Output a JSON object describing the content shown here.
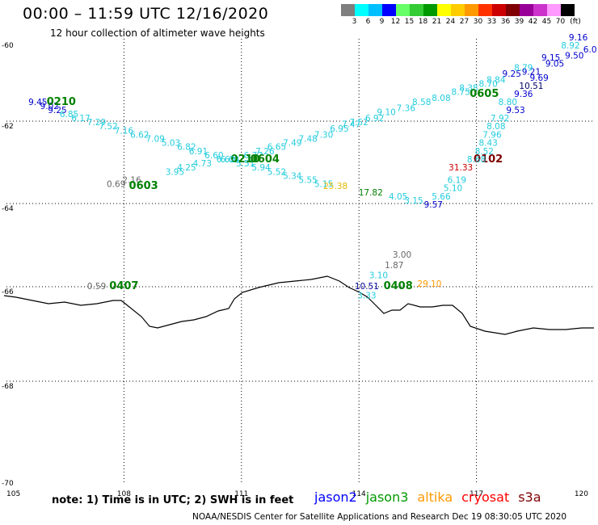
{
  "header": {
    "title": "00:00 – 11:59 UTC 12/16/2020",
    "subtitle": "12 hour collection of altimeter wave heights"
  },
  "colorbar": {
    "colors": [
      "#7f7f7f",
      "#00ffff",
      "#00bfff",
      "#0000ff",
      "#66ff66",
      "#33cc33",
      "#009900",
      "#ffff00",
      "#ffcc00",
      "#ff9900",
      "#ff3300",
      "#cc0000",
      "#800000",
      "#990099",
      "#cc33cc",
      "#ff99ff",
      "#000000"
    ],
    "labels": [
      "3",
      "6",
      "9",
      "12",
      "15",
      "18",
      "21",
      "24",
      "27",
      "30",
      "33",
      "36",
      "39",
      "42",
      "45",
      "70"
    ],
    "unit": "(ft)"
  },
  "axes": {
    "lon_labels": [
      "105",
      "108",
      "111",
      "114",
      "117",
      "120"
    ],
    "lat_labels": [
      "-60",
      "-62",
      "-64",
      "-66",
      "-68",
      "-70"
    ]
  },
  "measurements": [
    {
      "v": "9.45",
      "c": "#0000cc",
      "lon": 105.8,
      "lat": -61.6
    },
    {
      "v": "9.02",
      "c": "#0000cc",
      "lon": 106.1,
      "lat": -61.7
    },
    {
      "v": "9.25",
      "c": "#0000cc",
      "lon": 106.3,
      "lat": -61.8
    },
    {
      "v": "0210",
      "c": "#008000",
      "lon": 106.4,
      "lat": -61.6,
      "big": true
    },
    {
      "v": "6.85",
      "c": "#22ccdd",
      "lon": 106.6,
      "lat": -61.9
    },
    {
      "v": "6.17",
      "c": "#22ccdd",
      "lon": 106.9,
      "lat": -62.0
    },
    {
      "v": "7.29",
      "c": "#22ccdd",
      "lon": 107.3,
      "lat": -62.1
    },
    {
      "v": "7.52",
      "c": "#22ccdd",
      "lon": 107.6,
      "lat": -62.2
    },
    {
      "v": "7.16",
      "c": "#22ccdd",
      "lon": 108.0,
      "lat": -62.3
    },
    {
      "v": "6.62",
      "c": "#22ccdd",
      "lon": 108.4,
      "lat": -62.4
    },
    {
      "v": "7.09",
      "c": "#22ccdd",
      "lon": 108.8,
      "lat": -62.5
    },
    {
      "v": "5.03",
      "c": "#22ccdd",
      "lon": 109.2,
      "lat": -62.6
    },
    {
      "v": "6.82",
      "c": "#22ccdd",
      "lon": 109.6,
      "lat": -62.7
    },
    {
      "v": "6.91",
      "c": "#22ccdd",
      "lon": 109.9,
      "lat": -62.8
    },
    {
      "v": "6.60",
      "c": "#22ccdd",
      "lon": 110.3,
      "lat": -62.9
    },
    {
      "v": "6.60",
      "c": "#22ccdd",
      "lon": 110.7,
      "lat": -63.0
    },
    {
      "v": "5.51",
      "c": "#22ccdd",
      "lon": 111.1,
      "lat": -63.1
    },
    {
      "v": "5.94",
      "c": "#22ccdd",
      "lon": 111.5,
      "lat": -63.2
    },
    {
      "v": "5.52",
      "c": "#22ccdd",
      "lon": 111.9,
      "lat": -63.3
    },
    {
      "v": "5.34",
      "c": "#22ccdd",
      "lon": 112.3,
      "lat": -63.4
    },
    {
      "v": "5.55",
      "c": "#22ccdd",
      "lon": 112.7,
      "lat": -63.5
    },
    {
      "v": "5.15",
      "c": "#22ccdd",
      "lon": 113.1,
      "lat": -63.6
    },
    {
      "v": "25.38",
      "c": "#e6b800",
      "lon": 113.4,
      "lat": -63.65
    },
    {
      "v": "17.82",
      "c": "#008000",
      "lon": 114.3,
      "lat": -63.8
    },
    {
      "v": "4.05",
      "c": "#22ccdd",
      "lon": 115.0,
      "lat": -63.9
    },
    {
      "v": "3.15",
      "c": "#22ccdd",
      "lon": 115.4,
      "lat": -64.0
    },
    {
      "v": "5.66",
      "c": "#22ccdd",
      "lon": 116.1,
      "lat": -63.9
    },
    {
      "v": "9.57",
      "c": "#0000cc",
      "lon": 115.9,
      "lat": -64.1
    },
    {
      "v": "5.10",
      "c": "#22ccdd",
      "lon": 116.4,
      "lat": -63.7
    },
    {
      "v": "6.19",
      "c": "#22ccdd",
      "lon": 116.5,
      "lat": -63.5
    },
    {
      "v": "31.33",
      "c": "#cc0000",
      "lon": 116.6,
      "lat": -63.2
    },
    {
      "v": "0102",
      "c": "#800000",
      "lon": 117.3,
      "lat": -63.0,
      "big": true
    },
    {
      "v": "8.68",
      "c": "#22ccdd",
      "lon": 117.0,
      "lat": -63.0
    },
    {
      "v": "8.52",
      "c": "#22ccdd",
      "lon": 117.2,
      "lat": -62.8
    },
    {
      "v": "8.43",
      "c": "#22ccdd",
      "lon": 117.3,
      "lat": -62.6
    },
    {
      "v": "7.96",
      "c": "#22ccdd",
      "lon": 117.4,
      "lat": -62.4
    },
    {
      "v": "8.08",
      "c": "#22ccdd",
      "lon": 117.5,
      "lat": -62.2
    },
    {
      "v": "7.92",
      "c": "#22ccdd",
      "lon": 117.6,
      "lat": -62.0
    },
    {
      "v": "9.53",
      "c": "#0000cc",
      "lon": 118.0,
      "lat": -61.8
    },
    {
      "v": "8.80",
      "c": "#22ccdd",
      "lon": 117.8,
      "lat": -61.6
    },
    {
      "v": "9.36",
      "c": "#0000cc",
      "lon": 118.2,
      "lat": -61.4
    },
    {
      "v": "9.69",
      "c": "#0000cc",
      "lon": 118.6,
      "lat": -61.0
    },
    {
      "v": "10.51",
      "c": "#000066",
      "lon": 118.4,
      "lat": -61.2
    },
    {
      "v": "9.21",
      "c": "#0000cc",
      "lon": 118.4,
      "lat": -60.85
    },
    {
      "v": "9.25",
      "c": "#0000cc",
      "lon": 117.9,
      "lat": -60.9
    },
    {
      "v": "8.79",
      "c": "#22ccdd",
      "lon": 118.2,
      "lat": -60.75
    },
    {
      "v": "9.15",
      "c": "#0000cc",
      "lon": 118.9,
      "lat": -60.5
    },
    {
      "v": "9.05",
      "c": "#0000cc",
      "lon": 119.0,
      "lat": -60.65
    },
    {
      "v": "8.92",
      "c": "#22ccdd",
      "lon": 119.4,
      "lat": -60.2
    },
    {
      "v": "9.16",
      "c": "#0000cc",
      "lon": 119.6,
      "lat": -60.0
    },
    {
      "v": "9.50",
      "c": "#0000cc",
      "lon": 119.5,
      "lat": -60.45
    },
    {
      "v": "6.0",
      "c": "#0000cc",
      "lon": 119.9,
      "lat": -60.3
    },
    {
      "v": "8.70",
      "c": "#22ccdd",
      "lon": 117.3,
      "lat": -61.15
    },
    {
      "v": "8.84",
      "c": "#22ccdd",
      "lon": 117.5,
      "lat": -61.05
    },
    {
      "v": "8.75",
      "c": "#22ccdd",
      "lon": 116.6,
      "lat": -61.35
    },
    {
      "v": "8.38",
      "c": "#22ccdd",
      "lon": 116.8,
      "lat": -61.25
    },
    {
      "v": "0605",
      "c": "#008000",
      "lon": 117.2,
      "lat": -61.4,
      "big": true
    },
    {
      "v": "8.08",
      "c": "#22ccdd",
      "lon": 116.1,
      "lat": -61.5
    },
    {
      "v": "8.58",
      "c": "#22ccdd",
      "lon": 115.6,
      "lat": -61.6
    },
    {
      "v": "7.36",
      "c": "#22ccdd",
      "lon": 115.2,
      "lat": -61.75
    },
    {
      "v": "9.10",
      "c": "#22ccdd",
      "lon": 114.7,
      "lat": -61.85
    },
    {
      "v": "6.92",
      "c": "#22ccdd",
      "lon": 114.4,
      "lat": -62.0
    },
    {
      "v": "7.52",
      "c": "#22ccdd",
      "lon": 114.0,
      "lat": -62.1
    },
    {
      "v": "7.47",
      "c": "#22ccdd",
      "lon": 113.8,
      "lat": -62.15
    },
    {
      "v": "6.95",
      "c": "#22ccdd",
      "lon": 113.5,
      "lat": -62.25
    },
    {
      "v": "7.30",
      "c": "#22ccdd",
      "lon": 113.1,
      "lat": -62.4
    },
    {
      "v": "7.48",
      "c": "#22ccdd",
      "lon": 112.7,
      "lat": -62.5
    },
    {
      "v": "7.49",
      "c": "#22ccdd",
      "lon": 112.3,
      "lat": -62.6
    },
    {
      "v": "6.65",
      "c": "#22ccdd",
      "lon": 111.9,
      "lat": -62.7
    },
    {
      "v": "7.26",
      "c": "#22ccdd",
      "lon": 111.6,
      "lat": -62.8
    },
    {
      "v": "6.77",
      "c": "#22ccdd",
      "lon": 111.3,
      "lat": -62.9
    },
    {
      "v": "0210",
      "c": "#008000",
      "lon": 111.1,
      "lat": -63.0,
      "big": true
    },
    {
      "v": "0604",
      "c": "#008000",
      "lon": 111.6,
      "lat": -63.0,
      "big": true
    },
    {
      "v": "6.62",
      "c": "#22ccdd",
      "lon": 110.6,
      "lat": -63.0
    },
    {
      "v": "4.73",
      "c": "#22ccdd",
      "lon": 110.0,
      "lat": -63.1
    },
    {
      "v": "4.25",
      "c": "#22ccdd",
      "lon": 109.6,
      "lat": -63.2
    },
    {
      "v": "3.95",
      "c": "#22ccdd",
      "lon": 109.3,
      "lat": -63.3
    },
    {
      "v": "2.16",
      "c": "#666666",
      "lon": 108.2,
      "lat": -63.5
    },
    {
      "v": "0.69",
      "c": "#666666",
      "lon": 107.8,
      "lat": -63.6
    },
    {
      "v": "0603",
      "c": "#008000",
      "lon": 108.5,
      "lat": -63.65,
      "big": true
    },
    {
      "v": "3.00",
      "c": "#666666",
      "lon": 115.1,
      "lat": -65.3
    },
    {
      "v": "1.87",
      "c": "#666666",
      "lon": 114.9,
      "lat": -65.55
    },
    {
      "v": "3.10",
      "c": "#22ccdd",
      "lon": 114.5,
      "lat": -65.8
    },
    {
      "v": "10.51",
      "c": "#000099",
      "lon": 114.2,
      "lat": -66.05
    },
    {
      "v": "3.33",
      "c": "#22ccdd",
      "lon": 114.2,
      "lat": -66.25
    },
    {
      "v": "0408",
      "c": "#008000",
      "lon": 115.0,
      "lat": -66.05,
      "big": true
    },
    {
      "v": "29.10",
      "c": "#ff9900",
      "lon": 115.8,
      "lat": -66.0
    },
    {
      "v": "0.59",
      "c": "#666666",
      "lon": 107.3,
      "lat": -66.05
    },
    {
      "v": "0407",
      "c": "#008000",
      "lon": 108.0,
      "lat": -66.05,
      "big": true
    }
  ],
  "note": "note:  1) Time is in UTC;  2) SWH is in feet",
  "legend": [
    {
      "label": "jason2",
      "color": "#0000ff"
    },
    {
      "label": "jason3",
      "color": "#009900"
    },
    {
      "label": "altika",
      "color": "#ff9900"
    },
    {
      "label": "cryosat",
      "color": "#ff0000"
    },
    {
      "label": "s3a",
      "color": "#800000"
    }
  ],
  "credit": "NOAA/NESDIS Center for Satellite Applications and Research     Dec 19 08:30:05 UTC 2020"
}
